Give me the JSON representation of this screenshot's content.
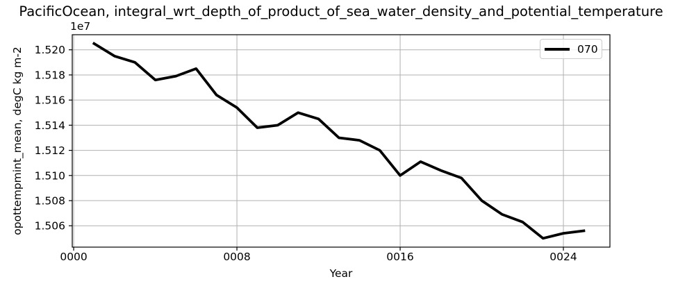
{
  "chart_data": {
    "type": "line",
    "title": "PacificOcean, integral_wrt_depth_of_product_of_sea_water_density_and_potential_temperature",
    "xlabel": "Year",
    "ylabel": "opottempmint_mean, degC kg m-2",
    "y_offset_label": "1e7",
    "grid": true,
    "legend_position": "upper right",
    "x": [
      1,
      2,
      3,
      4,
      5,
      6,
      7,
      8,
      9,
      10,
      11,
      12,
      13,
      14,
      15,
      16,
      17,
      18,
      19,
      20,
      21,
      22,
      23,
      24,
      25
    ],
    "series": [
      {
        "name": "070",
        "color": "#000000",
        "linewidth": 3.8,
        "values": [
          15205000,
          15195000,
          15190000,
          15176000,
          15179000,
          15185000,
          15164000,
          15154000,
          15138000,
          15140000,
          15150000,
          15145000,
          15130000,
          15128000,
          15120000,
          15100000,
          15111000,
          15104000,
          15098000,
          15080000,
          15069000,
          15063000,
          15050000,
          15054000,
          15056000
        ]
      }
    ],
    "xticks": {
      "values": [
        0,
        8,
        16,
        24
      ],
      "labels": [
        "0000",
        "0008",
        "0016",
        "0024"
      ]
    },
    "yticks": {
      "values": [
        15060000,
        15080000,
        15100000,
        15120000,
        15140000,
        15160000,
        15180000,
        15200000
      ],
      "labels": [
        "1.506",
        "1.508",
        "1.510",
        "1.512",
        "1.514",
        "1.516",
        "1.518",
        "1.520"
      ]
    },
    "xlim": [
      -0.07,
      26.28
    ],
    "ylim": [
      15043000,
      15212000
    ],
    "colors": {
      "grid": "#b0b0b0",
      "spine": "#000000",
      "background": "#ffffff",
      "legend_border": "#cccccc"
    }
  }
}
